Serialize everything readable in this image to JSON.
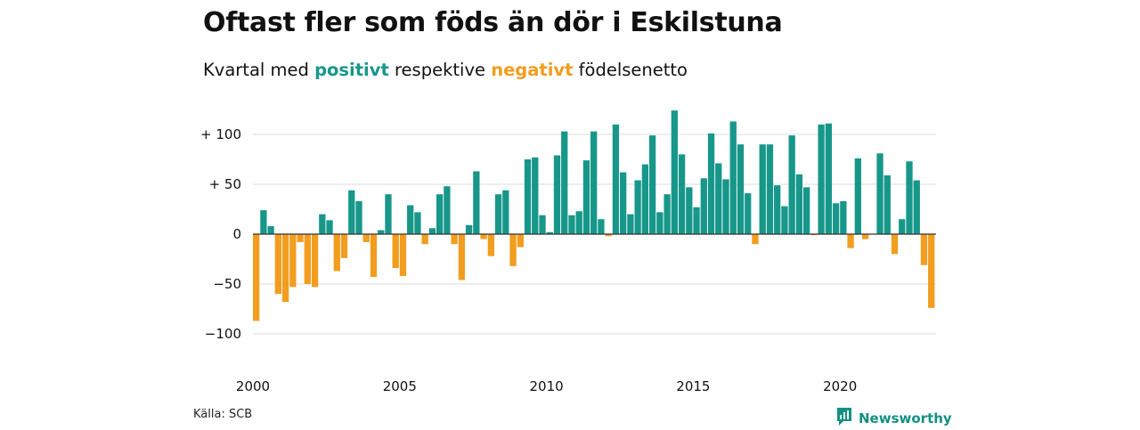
{
  "title": "Oftast fler som föds än dör i Eskilstuna",
  "subtitle": {
    "prefix": "Kvartal med ",
    "positive_word": "positivt",
    "middle": " respektive ",
    "negative_word": "negativt",
    "suffix": " födelsenetto"
  },
  "source": "Källa: SCB",
  "brand": "Newsworthy",
  "colors": {
    "positive": "#17978a",
    "negative": "#f29d1e",
    "grid": "#dddddd",
    "zero": "#333333"
  },
  "chart_data": {
    "type": "bar",
    "title": "Oftast fler som föds än dör i Eskilstuna",
    "xlabel": "",
    "ylabel": "",
    "ylim": [
      -110,
      130
    ],
    "y_ticks": [
      {
        "value": 100,
        "label": "+ 100"
      },
      {
        "value": 50,
        "label": "+  50"
      },
      {
        "value": 0,
        "label": "0"
      },
      {
        "value": -50,
        "label": "−50"
      },
      {
        "value": -100,
        "label": "−100"
      }
    ],
    "x_ticks": [
      {
        "year": 2000,
        "label": "2000"
      },
      {
        "year": 2005,
        "label": "2005"
      },
      {
        "year": 2010,
        "label": "2010"
      },
      {
        "year": 2015,
        "label": "2015"
      },
      {
        "year": 2020,
        "label": "2020"
      }
    ],
    "start_year": 2000,
    "quarters": [
      {
        "q": "2000Q1",
        "v": -87
      },
      {
        "q": "2000Q2",
        "v": 24
      },
      {
        "q": "2000Q3",
        "v": 8
      },
      {
        "q": "2000Q4",
        "v": -60
      },
      {
        "q": "2001Q1",
        "v": -68
      },
      {
        "q": "2001Q2",
        "v": -53
      },
      {
        "q": "2001Q3",
        "v": -8
      },
      {
        "q": "2001Q4",
        "v": -50
      },
      {
        "q": "2002Q1",
        "v": -53
      },
      {
        "q": "2002Q2",
        "v": 20
      },
      {
        "q": "2002Q3",
        "v": 14
      },
      {
        "q": "2002Q4",
        "v": -37
      },
      {
        "q": "2003Q1",
        "v": -24
      },
      {
        "q": "2003Q2",
        "v": 44
      },
      {
        "q": "2003Q3",
        "v": 33
      },
      {
        "q": "2003Q4",
        "v": -8
      },
      {
        "q": "2004Q1",
        "v": -43
      },
      {
        "q": "2004Q2",
        "v": 4
      },
      {
        "q": "2004Q3",
        "v": 40
      },
      {
        "q": "2004Q4",
        "v": -34
      },
      {
        "q": "2005Q1",
        "v": -42
      },
      {
        "q": "2005Q2",
        "v": 29
      },
      {
        "q": "2005Q3",
        "v": 22
      },
      {
        "q": "2005Q4",
        "v": -10
      },
      {
        "q": "2006Q1",
        "v": 6
      },
      {
        "q": "2006Q2",
        "v": 40
      },
      {
        "q": "2006Q3",
        "v": 48
      },
      {
        "q": "2006Q4",
        "v": -10
      },
      {
        "q": "2007Q1",
        "v": -46
      },
      {
        "q": "2007Q2",
        "v": 9
      },
      {
        "q": "2007Q3",
        "v": 63
      },
      {
        "q": "2007Q4",
        "v": -5
      },
      {
        "q": "2008Q1",
        "v": -22
      },
      {
        "q": "2008Q2",
        "v": 40
      },
      {
        "q": "2008Q3",
        "v": 44
      },
      {
        "q": "2008Q4",
        "v": -32
      },
      {
        "q": "2009Q1",
        "v": -13
      },
      {
        "q": "2009Q2",
        "v": 75
      },
      {
        "q": "2009Q3",
        "v": 77
      },
      {
        "q": "2009Q4",
        "v": 19
      },
      {
        "q": "2010Q1",
        "v": 2
      },
      {
        "q": "2010Q2",
        "v": 79
      },
      {
        "q": "2010Q3",
        "v": 103
      },
      {
        "q": "2010Q4",
        "v": 19
      },
      {
        "q": "2011Q1",
        "v": 23
      },
      {
        "q": "2011Q2",
        "v": 74
      },
      {
        "q": "2011Q3",
        "v": 103
      },
      {
        "q": "2011Q4",
        "v": 15
      },
      {
        "q": "2012Q1",
        "v": -2
      },
      {
        "q": "2012Q2",
        "v": 110
      },
      {
        "q": "2012Q3",
        "v": 62
      },
      {
        "q": "2012Q4",
        "v": 20
      },
      {
        "q": "2013Q1",
        "v": 54
      },
      {
        "q": "2013Q2",
        "v": 70
      },
      {
        "q": "2013Q3",
        "v": 99
      },
      {
        "q": "2013Q4",
        "v": 22
      },
      {
        "q": "2014Q1",
        "v": 40
      },
      {
        "q": "2014Q2",
        "v": 124
      },
      {
        "q": "2014Q3",
        "v": 80
      },
      {
        "q": "2014Q4",
        "v": 47
      },
      {
        "q": "2015Q1",
        "v": 27
      },
      {
        "q": "2015Q2",
        "v": 56
      },
      {
        "q": "2015Q3",
        "v": 101
      },
      {
        "q": "2015Q4",
        "v": 71
      },
      {
        "q": "2016Q1",
        "v": 55
      },
      {
        "q": "2016Q2",
        "v": 113
      },
      {
        "q": "2016Q3",
        "v": 90
      },
      {
        "q": "2016Q4",
        "v": 41
      },
      {
        "q": "2017Q1",
        "v": -10
      },
      {
        "q": "2017Q2",
        "v": 90
      },
      {
        "q": "2017Q3",
        "v": 90
      },
      {
        "q": "2017Q4",
        "v": 49
      },
      {
        "q": "2018Q1",
        "v": 28
      },
      {
        "q": "2018Q2",
        "v": 99
      },
      {
        "q": "2018Q3",
        "v": 60
      },
      {
        "q": "2018Q4",
        "v": 47
      },
      {
        "q": "2019Q1",
        "v": -1
      },
      {
        "q": "2019Q2",
        "v": 110
      },
      {
        "q": "2019Q3",
        "v": 111
      },
      {
        "q": "2019Q4",
        "v": 31
      },
      {
        "q": "2020Q1",
        "v": 33
      },
      {
        "q": "2020Q2",
        "v": -14
      },
      {
        "q": "2020Q3",
        "v": 76
      },
      {
        "q": "2020Q4",
        "v": -5
      },
      {
        "q": "2021Q1",
        "v": 0
      },
      {
        "q": "2021Q2",
        "v": 81
      },
      {
        "q": "2021Q3",
        "v": 59
      },
      {
        "q": "2021Q4",
        "v": -20
      },
      {
        "q": "2022Q1",
        "v": 15
      },
      {
        "q": "2022Q2",
        "v": 73
      },
      {
        "q": "2022Q3",
        "v": 54
      },
      {
        "q": "2022Q4",
        "v": -31
      },
      {
        "q": "2023Q1",
        "v": -74
      }
    ]
  }
}
